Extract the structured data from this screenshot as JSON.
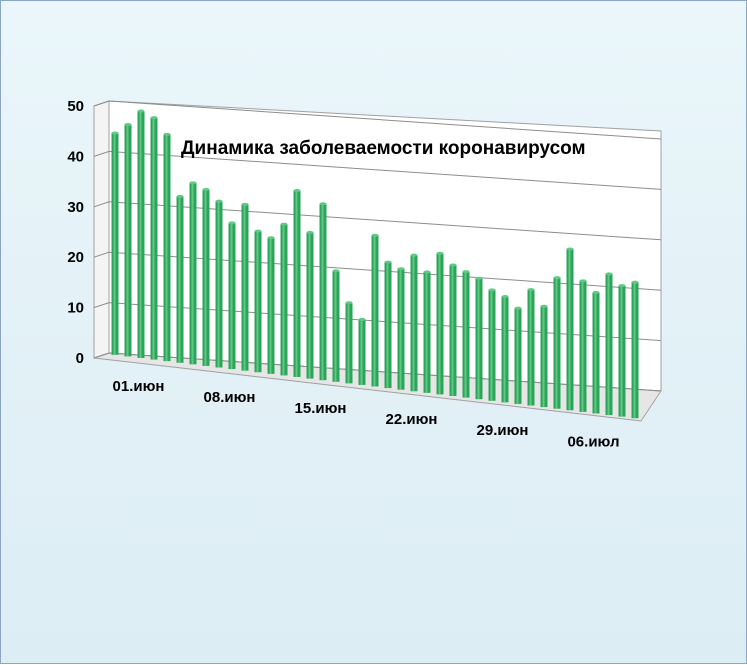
{
  "chart_data": {
    "type": "bar",
    "title": "Динамика заболеваемости коронавирусом",
    "xlabel": "",
    "ylabel": "",
    "ylim": [
      0,
      50
    ],
    "y_ticks": [
      "0",
      "10",
      "20",
      "30",
      "40",
      "50"
    ],
    "x_tick_labels": [
      "01.июн",
      "08.июн",
      "15.июн",
      "22.июн",
      "29.июн",
      "06.июл"
    ],
    "categories": [
      "01.06",
      "02.06",
      "03.06",
      "04.06",
      "05.06",
      "06.06",
      "07.06",
      "08.06",
      "09.06",
      "10.06",
      "11.06",
      "12.06",
      "13.06",
      "14.06",
      "15.06",
      "16.06",
      "17.06",
      "18.06",
      "19.06",
      "20.06",
      "21.06",
      "22.06",
      "23.06",
      "24.06",
      "25.06",
      "26.06",
      "27.06",
      "28.06",
      "29.06",
      "30.06",
      "01.07",
      "02.07",
      "03.07",
      "04.07",
      "05.07",
      "06.07",
      "07.07",
      "08.07",
      "09.07",
      "10.07",
      "11.07"
    ],
    "values": [
      44,
      46,
      49,
      48,
      45,
      33,
      36,
      35,
      33,
      29,
      33,
      28,
      27,
      30,
      37,
      29,
      35,
      22,
      16,
      13,
      30,
      25,
      24,
      27,
      24,
      28,
      26,
      25,
      24,
      22,
      21,
      19,
      23,
      20,
      26,
      32,
      26,
      24,
      28,
      26,
      27
    ],
    "bar_color": "#2aa55a",
    "grid": true,
    "legend": "none"
  }
}
